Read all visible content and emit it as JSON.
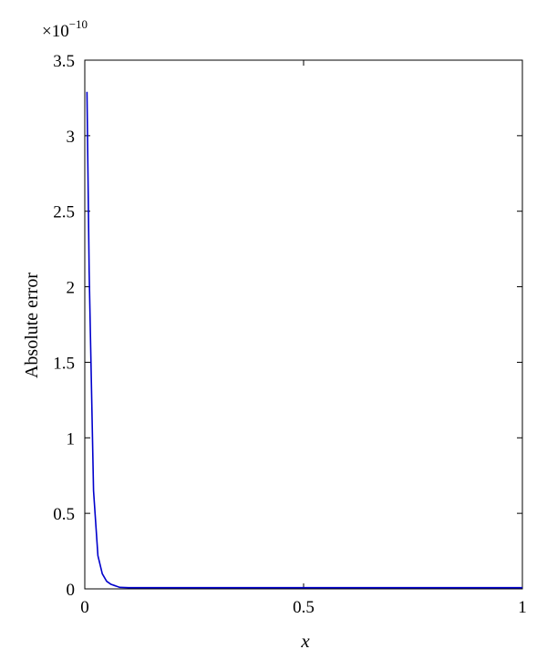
{
  "chart_data": {
    "type": "line",
    "title": "",
    "xlabel": "x",
    "ylabel": "Absolute error",
    "y_scale_multiplier": "×10",
    "y_scale_exponent": "−10",
    "xlim": [
      0,
      1
    ],
    "ylim": [
      0,
      3.5
    ],
    "grid": false,
    "x_ticks": [
      {
        "value": 0,
        "label": "0"
      },
      {
        "value": 0.5,
        "label": "0.5"
      },
      {
        "value": 1,
        "label": "1"
      }
    ],
    "y_ticks": [
      {
        "value": 0,
        "label": "0"
      },
      {
        "value": 0.5,
        "label": "0.5"
      },
      {
        "value": 1,
        "label": "1"
      },
      {
        "value": 1.5,
        "label": "1.5"
      },
      {
        "value": 2,
        "label": "2"
      },
      {
        "value": 2.5,
        "label": "2.5"
      },
      {
        "value": 3,
        "label": "3"
      },
      {
        "value": 3.5,
        "label": "3.5"
      }
    ],
    "series": [
      {
        "color": "#0000cc",
        "x": [
          0.005,
          0.01,
          0.02,
          0.03,
          0.04,
          0.05,
          0.06,
          0.07,
          0.08,
          0.1,
          0.2,
          0.3,
          0.4,
          0.5,
          0.6,
          0.7,
          0.8,
          0.9,
          1.0
        ],
        "y": [
          3.29,
          2.1,
          0.65,
          0.22,
          0.1,
          0.05,
          0.03,
          0.02,
          0.01,
          0.008,
          0.008,
          0.008,
          0.008,
          0.008,
          0.008,
          0.008,
          0.008,
          0.008,
          0.008
        ]
      }
    ]
  }
}
